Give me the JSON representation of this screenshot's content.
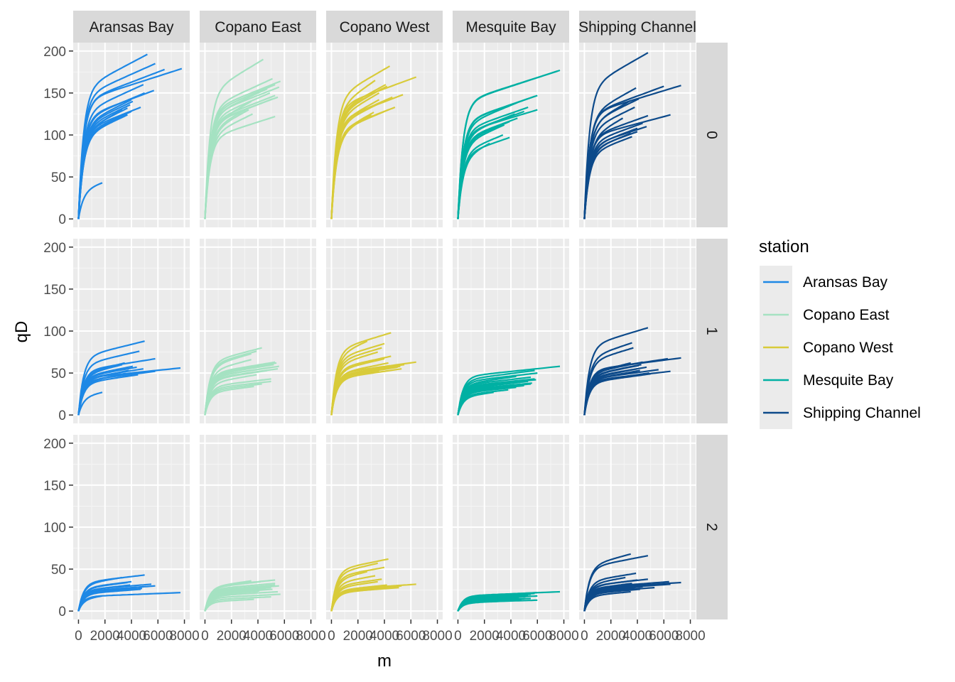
{
  "chart_data": {
    "type": "line",
    "xlabel": "m",
    "ylabel": "qD",
    "xlim": [
      0,
      8000
    ],
    "ylim": [
      0,
      200
    ],
    "x_ticks": [
      0,
      2000,
      4000,
      6000,
      8000
    ],
    "y_ticks": [
      0,
      50,
      100,
      150,
      200
    ],
    "x_tick_labels": [
      "0",
      "2000",
      "4000",
      "6000",
      "8000"
    ],
    "y_tick_labels": [
      "0",
      "50",
      "100",
      "150",
      "200"
    ],
    "facet_columns": [
      "Aransas Bay",
      "Copano East",
      "Copano West",
      "Mesquite Bay",
      "Shipping Channel"
    ],
    "facet_rows": [
      "0",
      "1",
      "2"
    ],
    "grid": true,
    "legend": {
      "title": "station",
      "position": "right",
      "entries": [
        {
          "name": "Aransas Bay",
          "color": "#1E88E5"
        },
        {
          "name": "Copano East",
          "color": "#A5E2C2"
        },
        {
          "name": "Copano West",
          "color": "#D8CB3A"
        },
        {
          "name": "Mesquite Bay",
          "color": "#00B0A3"
        },
        {
          "name": "Shipping Channel",
          "color": "#0D4A8A"
        }
      ]
    },
    "panels": [
      {
        "station": "Aransas Bay",
        "q": "0",
        "curves": [
          [
            196,
            5200
          ],
          [
            185,
            5800
          ],
          [
            179,
            7800
          ],
          [
            178,
            6500
          ],
          [
            160,
            4900
          ],
          [
            153,
            5700
          ],
          [
            150,
            5000
          ],
          [
            142,
            4000
          ],
          [
            140,
            4100
          ],
          [
            136,
            3900
          ],
          [
            133,
            4700
          ],
          [
            132,
            3700
          ],
          [
            130,
            3300
          ],
          [
            128,
            4000
          ],
          [
            127,
            3800
          ],
          [
            125,
            3600
          ],
          [
            124,
            3700
          ],
          [
            43,
            1800
          ]
        ]
      },
      {
        "station": "Copano East",
        "q": "0",
        "curves": [
          [
            190,
            4400
          ],
          [
            167,
            5100
          ],
          [
            164,
            5700
          ],
          [
            160,
            5300
          ],
          [
            157,
            5600
          ],
          [
            155,
            4700
          ],
          [
            150,
            4900
          ],
          [
            147,
            5300
          ],
          [
            145,
            5500
          ],
          [
            143,
            5100
          ],
          [
            140,
            3500
          ],
          [
            133,
            3400
          ],
          [
            130,
            3300
          ],
          [
            125,
            3600
          ],
          [
            122,
            5300
          ]
        ]
      },
      {
        "station": "Copano West",
        "q": "0",
        "curves": [
          [
            182,
            4400
          ],
          [
            169,
            6400
          ],
          [
            165,
            3300
          ],
          [
            160,
            4100
          ],
          [
            158,
            4200
          ],
          [
            155,
            3800
          ],
          [
            150,
            3600
          ],
          [
            148,
            5400
          ],
          [
            145,
            4600
          ],
          [
            142,
            3600
          ],
          [
            140,
            3900
          ],
          [
            133,
            4800
          ],
          [
            130,
            4300
          ],
          [
            127,
            3200
          ],
          [
            124,
            3000
          ]
        ]
      },
      {
        "station": "Mesquite Bay",
        "q": "0",
        "curves": [
          [
            177,
            7700
          ],
          [
            176,
            7500
          ],
          [
            147,
            6000
          ],
          [
            146,
            5800
          ],
          [
            140,
            4700
          ],
          [
            133,
            5300
          ],
          [
            130,
            6000
          ],
          [
            128,
            5000
          ],
          [
            125,
            4300
          ],
          [
            120,
            4500
          ],
          [
            116,
            3900
          ],
          [
            112,
            3500
          ],
          [
            100,
            3400
          ],
          [
            97,
            3900
          ],
          [
            90,
            2400
          ]
        ]
      },
      {
        "station": "Shipping Channel",
        "q": "0",
        "curves": [
          [
            198,
            4800
          ],
          [
            159,
            7300
          ],
          [
            158,
            6000
          ],
          [
            156,
            3900
          ],
          [
            143,
            4100
          ],
          [
            141,
            3500
          ],
          [
            133,
            3800
          ],
          [
            124,
            6500
          ],
          [
            123,
            4800
          ],
          [
            120,
            2900
          ],
          [
            114,
            4400
          ],
          [
            110,
            4700
          ],
          [
            108,
            4000
          ],
          [
            104,
            4000
          ],
          [
            102,
            3500
          ],
          [
            98,
            3600
          ]
        ]
      },
      {
        "station": "Aransas Bay",
        "q": "1",
        "curves": [
          [
            88,
            5000
          ],
          [
            76,
            4600
          ],
          [
            67,
            5800
          ],
          [
            62,
            3500
          ],
          [
            60,
            3300
          ],
          [
            58,
            4100
          ],
          [
            57,
            4400
          ],
          [
            56,
            7700
          ],
          [
            55,
            4900
          ],
          [
            53,
            3800
          ],
          [
            52,
            5800
          ],
          [
            50,
            4000
          ],
          [
            49,
            3500
          ],
          [
            48,
            4500
          ],
          [
            27,
            1800
          ]
        ]
      },
      {
        "station": "Copano East",
        "q": "1",
        "curves": [
          [
            80,
            4300
          ],
          [
            76,
            3900
          ],
          [
            73,
            3500
          ],
          [
            66,
            3500
          ],
          [
            63,
            5300
          ],
          [
            62,
            5400
          ],
          [
            60,
            5200
          ],
          [
            59,
            4600
          ],
          [
            58,
            5600
          ],
          [
            57,
            5100
          ],
          [
            55,
            5500
          ],
          [
            53,
            4700
          ],
          [
            48,
            3900
          ],
          [
            43,
            5000
          ],
          [
            40,
            5000
          ],
          [
            37,
            4300
          ],
          [
            34,
            3700
          ]
        ]
      },
      {
        "station": "Copano West",
        "q": "1",
        "curves": [
          [
            98,
            4500
          ],
          [
            88,
            2700
          ],
          [
            85,
            4000
          ],
          [
            80,
            3800
          ],
          [
            75,
            3500
          ],
          [
            70,
            4500
          ],
          [
            67,
            4000
          ],
          [
            63,
            6400
          ],
          [
            62,
            4300
          ],
          [
            60,
            5500
          ],
          [
            58,
            5200
          ],
          [
            57,
            5000
          ],
          [
            55,
            5300
          ],
          [
            53,
            3600
          ]
        ]
      },
      {
        "station": "Mesquite Bay",
        "q": "1",
        "curves": [
          [
            58,
            7700
          ],
          [
            53,
            5800
          ],
          [
            50,
            6000
          ],
          [
            46,
            4400
          ],
          [
            45,
            5500
          ],
          [
            43,
            5800
          ],
          [
            42,
            5900
          ],
          [
            41,
            5000
          ],
          [
            40,
            5300
          ],
          [
            39,
            4700
          ],
          [
            38,
            5600
          ],
          [
            37,
            5500
          ],
          [
            35,
            5000
          ],
          [
            33,
            4400
          ],
          [
            30,
            3800
          ],
          [
            27,
            2700
          ]
        ]
      },
      {
        "station": "Shipping Channel",
        "q": "1",
        "curves": [
          [
            104,
            4800
          ],
          [
            86,
            3600
          ],
          [
            80,
            3700
          ],
          [
            68,
            7300
          ],
          [
            67,
            6300
          ],
          [
            63,
            4400
          ],
          [
            62,
            3500
          ],
          [
            60,
            4300
          ],
          [
            59,
            4100
          ],
          [
            57,
            4700
          ],
          [
            55,
            4000
          ],
          [
            54,
            5600
          ],
          [
            53,
            4200
          ],
          [
            52,
            6500
          ],
          [
            50,
            4900
          ],
          [
            49,
            5000
          ]
        ]
      },
      {
        "station": "Aransas Bay",
        "q": "2",
        "curves": [
          [
            43,
            5000
          ],
          [
            40,
            3300
          ],
          [
            35,
            4000
          ],
          [
            34,
            3700
          ],
          [
            32,
            5500
          ],
          [
            31,
            3900
          ],
          [
            30,
            5800
          ],
          [
            29,
            4900
          ],
          [
            28,
            4400
          ],
          [
            27,
            3300
          ],
          [
            27,
            4800
          ],
          [
            26,
            4700
          ],
          [
            22,
            7700
          ],
          [
            18,
            1800
          ]
        ]
      },
      {
        "station": "Copano East",
        "q": "2",
        "curves": [
          [
            37,
            5300
          ],
          [
            36,
            3500
          ],
          [
            35,
            4200
          ],
          [
            33,
            5300
          ],
          [
            31,
            5300
          ],
          [
            30,
            5600
          ],
          [
            29,
            4700
          ],
          [
            28,
            5000
          ],
          [
            27,
            4600
          ],
          [
            26,
            5100
          ],
          [
            25,
            3800
          ],
          [
            24,
            4100
          ],
          [
            23,
            5500
          ],
          [
            22,
            4000
          ],
          [
            20,
            5700
          ],
          [
            17,
            5000
          ],
          [
            14,
            3700
          ]
        ]
      },
      {
        "station": "Copano West",
        "q": "2",
        "curves": [
          [
            62,
            4300
          ],
          [
            57,
            3500
          ],
          [
            52,
            4000
          ],
          [
            47,
            2700
          ],
          [
            42,
            3300
          ],
          [
            38,
            3800
          ],
          [
            35,
            3500
          ],
          [
            32,
            6400
          ],
          [
            31,
            4200
          ],
          [
            30,
            5300
          ],
          [
            29,
            4500
          ],
          [
            28,
            5100
          ],
          [
            27,
            3900
          ]
        ]
      },
      {
        "station": "Mesquite Bay",
        "q": "2",
        "curves": [
          [
            23,
            7700
          ],
          [
            22,
            6000
          ],
          [
            21,
            5800
          ],
          [
            20,
            5500
          ],
          [
            19,
            5300
          ],
          [
            18,
            6000
          ],
          [
            17,
            5100
          ],
          [
            16,
            4600
          ],
          [
            15,
            5500
          ],
          [
            14,
            4800
          ],
          [
            13,
            6000
          ],
          [
            12,
            3600
          ]
        ]
      },
      {
        "station": "Shipping Channel",
        "q": "2",
        "curves": [
          [
            68,
            3500
          ],
          [
            66,
            4800
          ],
          [
            45,
            3900
          ],
          [
            40,
            3100
          ],
          [
            38,
            4800
          ],
          [
            37,
            4000
          ],
          [
            35,
            6400
          ],
          [
            34,
            7300
          ],
          [
            33,
            3600
          ],
          [
            32,
            6500
          ],
          [
            31,
            5000
          ],
          [
            30,
            4000
          ],
          [
            29,
            4400
          ],
          [
            28,
            5300
          ],
          [
            27,
            3800
          ],
          [
            26,
            4200
          ],
          [
            23,
            3500
          ]
        ]
      }
    ]
  }
}
